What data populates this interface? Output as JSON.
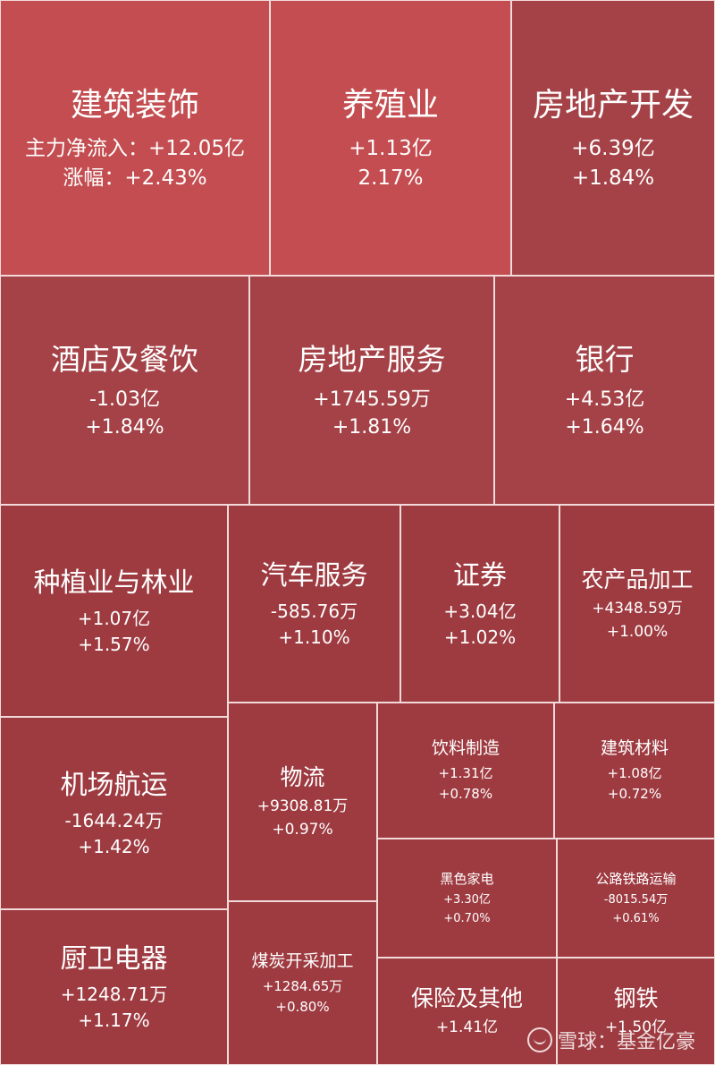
{
  "colors": {
    "bright": "#c34d50",
    "medium": "#a44247",
    "dark": "#9e3b41",
    "border": "#f3dada"
  },
  "watermark": {
    "text": "雪球：基金亿豪"
  },
  "tiles": [
    {
      "id": "building-decoration",
      "name": "建筑装饰",
      "flow_label": "主力净流入：",
      "flow": "+12.05亿",
      "change_label": "涨幅：",
      "change": "+2.43%"
    },
    {
      "id": "aquaculture",
      "name": "养殖业",
      "flow": "+1.13亿",
      "change": "2.17%"
    },
    {
      "id": "real-estate-dev",
      "name": "房地产开发",
      "flow": "+6.39亿",
      "change": "+1.84%"
    },
    {
      "id": "hotel-dining",
      "name": "酒店及餐饮",
      "flow": "-1.03亿",
      "change": "+1.84%"
    },
    {
      "id": "real-estate-service",
      "name": "房地产服务",
      "flow": "+1745.59万",
      "change": "+1.81%"
    },
    {
      "id": "bank",
      "name": "银行",
      "flow": "+4.53亿",
      "change": "+1.64%"
    },
    {
      "id": "planting-forestry",
      "name": "种植业与林业",
      "flow": "+1.07亿",
      "change": "+1.57%"
    },
    {
      "id": "auto-service",
      "name": "汽车服务",
      "flow": "-585.76万",
      "change": "+1.10%"
    },
    {
      "id": "securities",
      "name": "证券",
      "flow": "+3.04亿",
      "change": "+1.02%"
    },
    {
      "id": "agri-processing",
      "name": "农产品加工",
      "flow": "+4348.59万",
      "change": "+1.00%"
    },
    {
      "id": "airport-shipping",
      "name": "机场航运",
      "flow": "-1644.24万",
      "change": "+1.42%"
    },
    {
      "id": "logistics",
      "name": "物流",
      "flow": "+9308.81万",
      "change": "+0.97%"
    },
    {
      "id": "beverage",
      "name": "饮料制造",
      "flow": "+1.31亿",
      "change": "+0.78%"
    },
    {
      "id": "building-materials",
      "name": "建筑材料",
      "flow": "+1.08亿",
      "change": "+0.72%"
    },
    {
      "id": "black-appliance",
      "name": "黑色家电",
      "flow": "+3.30亿",
      "change": "+0.70%"
    },
    {
      "id": "road-rail",
      "name": "公路铁路运输",
      "flow": "-8015.54万",
      "change": "+0.61%"
    },
    {
      "id": "kitchen-bath",
      "name": "厨卫电器",
      "flow": "+1248.71万",
      "change": "+1.17%"
    },
    {
      "id": "coal-mining",
      "name": "煤炭开采加工",
      "flow": "+1284.65万",
      "change": "+0.80%"
    },
    {
      "id": "insurance-other",
      "name": "保险及其他",
      "flow": "+1.41亿",
      "change": ""
    },
    {
      "id": "steel",
      "name": "钢铁",
      "flow": "+1.50亿",
      "change": ""
    }
  ]
}
